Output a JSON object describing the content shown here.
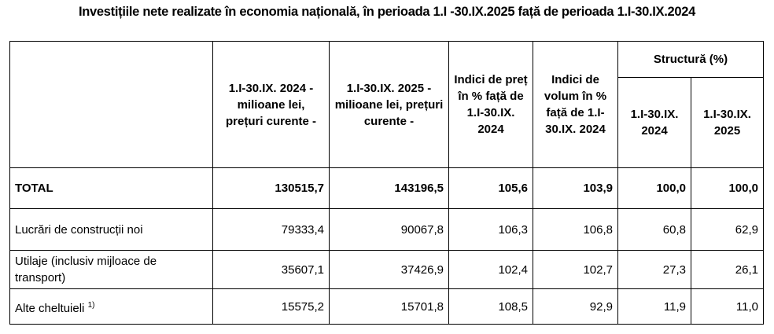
{
  "title": "Investițiile nete realizate în economia națională, în perioada 1.I -30.IX.2025 față de perioada 1.I-30.IX.2024",
  "headers": {
    "col1": "1.I-30.IX. 2024 - milioane lei, prețuri curente -",
    "col2": "1.I-30.IX. 2025 - milioane lei, prețuri curente -",
    "col3": "Indici de preț în % față de 1.I-30.IX. 2024",
    "col4": "Indici de volum în % față de 1.I-30.IX. 2024",
    "structure": "Structură (%)",
    "struct1": "1.I-30.IX. 2024",
    "struct2": "1.I-30.IX. 2025"
  },
  "rows": [
    {
      "label": "TOTAL",
      "sup": "",
      "v2024": "130515,7",
      "v2025": "143196,5",
      "price": "105,6",
      "volume": "103,9",
      "s2024": "100,0",
      "s2025": "100,0"
    },
    {
      "label": "Lucrări de construcții noi",
      "sup": "",
      "v2024": "79333,4",
      "v2025": "90067,8",
      "price": "106,3",
      "volume": "106,8",
      "s2024": "60,8",
      "s2025": "62,9"
    },
    {
      "label": "Utilaje (inclusiv mijloace de transport)",
      "sup": "",
      "v2024": "35607,1",
      "v2025": "37426,9",
      "price": "102,4",
      "volume": "102,7",
      "s2024": "27,3",
      "s2025": "26,1"
    },
    {
      "label": "Alte cheltuieli",
      "sup": "1)",
      "v2024": "15575,2",
      "v2025": "15701,8",
      "price": "108,5",
      "volume": "92,9",
      "s2024": "11,9",
      "s2025": "11,0"
    }
  ]
}
